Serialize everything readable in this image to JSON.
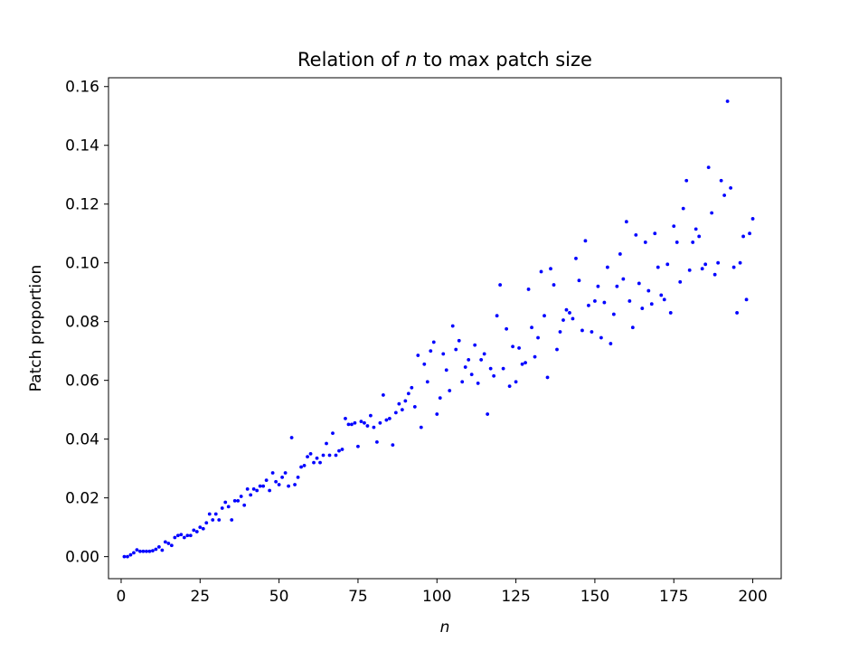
{
  "chart_data": {
    "type": "scatter",
    "title_prefix": "Relation of ",
    "title_var": "n",
    "title_suffix": " to max patch size",
    "xlabel": "n",
    "ylabel": "Patch proportion",
    "xlim": [
      -4,
      209
    ],
    "ylim": [
      -0.0075,
      0.163
    ],
    "xticks": [
      0,
      25,
      50,
      75,
      100,
      125,
      150,
      175,
      200
    ],
    "yticks": [
      0.0,
      0.02,
      0.04,
      0.06,
      0.08,
      0.1,
      0.12,
      0.14,
      0.16
    ],
    "ytick_labels": [
      "0.00",
      "0.02",
      "0.04",
      "0.06",
      "0.08",
      "0.10",
      "0.12",
      "0.14",
      "0.16"
    ],
    "grid": false,
    "legend": "none",
    "marker_color": "#0000ff",
    "series": [
      {
        "points": [
          [
            1,
            0.0
          ],
          [
            2,
            0.0
          ],
          [
            3,
            0.0006
          ],
          [
            4,
            0.0013
          ],
          [
            5,
            0.0023
          ],
          [
            6,
            0.0018
          ],
          [
            7,
            0.0018
          ],
          [
            8,
            0.0018
          ],
          [
            9,
            0.0018
          ],
          [
            10,
            0.002
          ],
          [
            11,
            0.0025
          ],
          [
            12,
            0.0033
          ],
          [
            13,
            0.0022
          ],
          [
            14,
            0.005
          ],
          [
            15,
            0.0045
          ],
          [
            16,
            0.0038
          ],
          [
            17,
            0.0065
          ],
          [
            18,
            0.0072
          ],
          [
            19,
            0.0075
          ],
          [
            20,
            0.0065
          ],
          [
            21,
            0.0072
          ],
          [
            22,
            0.0072
          ],
          [
            23,
            0.009
          ],
          [
            24,
            0.0085
          ],
          [
            25,
            0.01
          ],
          [
            26,
            0.0095
          ],
          [
            27,
            0.0115
          ],
          [
            28,
            0.0145
          ],
          [
            29,
            0.0125
          ],
          [
            30,
            0.0145
          ],
          [
            31,
            0.0125
          ],
          [
            32,
            0.0165
          ],
          [
            33,
            0.0185
          ],
          [
            34,
            0.017
          ],
          [
            35,
            0.0125
          ],
          [
            36,
            0.019
          ],
          [
            37,
            0.019
          ],
          [
            38,
            0.0205
          ],
          [
            39,
            0.0175
          ],
          [
            40,
            0.023
          ],
          [
            41,
            0.021
          ],
          [
            42,
            0.023
          ],
          [
            43,
            0.0225
          ],
          [
            44,
            0.024
          ],
          [
            45,
            0.024
          ],
          [
            46,
            0.026
          ],
          [
            47,
            0.0225
          ],
          [
            48,
            0.0285
          ],
          [
            49,
            0.0255
          ],
          [
            50,
            0.0245
          ],
          [
            51,
            0.027
          ],
          [
            52,
            0.0285
          ],
          [
            53,
            0.024
          ],
          [
            54,
            0.0405
          ],
          [
            55,
            0.0245
          ],
          [
            56,
            0.027
          ],
          [
            57,
            0.0305
          ],
          [
            58,
            0.031
          ],
          [
            59,
            0.034
          ],
          [
            60,
            0.035
          ],
          [
            61,
            0.032
          ],
          [
            62,
            0.0335
          ],
          [
            63,
            0.032
          ],
          [
            64,
            0.0345
          ],
          [
            65,
            0.0385
          ],
          [
            66,
            0.0345
          ],
          [
            67,
            0.042
          ],
          [
            68,
            0.0345
          ],
          [
            69,
            0.036
          ],
          [
            70,
            0.0365
          ],
          [
            71,
            0.047
          ],
          [
            72,
            0.045
          ],
          [
            73,
            0.045
          ],
          [
            74,
            0.0455
          ],
          [
            75,
            0.0375
          ],
          [
            76,
            0.046
          ],
          [
            77,
            0.0455
          ],
          [
            78,
            0.0445
          ],
          [
            79,
            0.048
          ],
          [
            80,
            0.044
          ],
          [
            81,
            0.039
          ],
          [
            82,
            0.0455
          ],
          [
            83,
            0.055
          ],
          [
            84,
            0.0465
          ],
          [
            85,
            0.047
          ],
          [
            86,
            0.038
          ],
          [
            87,
            0.049
          ],
          [
            88,
            0.052
          ],
          [
            89,
            0.05
          ],
          [
            90,
            0.053
          ],
          [
            91,
            0.0555
          ],
          [
            92,
            0.0575
          ],
          [
            93,
            0.051
          ],
          [
            94,
            0.0685
          ],
          [
            95,
            0.044
          ],
          [
            96,
            0.0655
          ],
          [
            97,
            0.0595
          ],
          [
            98,
            0.07
          ],
          [
            99,
            0.073
          ],
          [
            100,
            0.0485
          ],
          [
            101,
            0.054
          ],
          [
            102,
            0.069
          ],
          [
            103,
            0.0635
          ],
          [
            104,
            0.0565
          ],
          [
            105,
            0.0785
          ],
          [
            106,
            0.0705
          ],
          [
            107,
            0.0735
          ],
          [
            108,
            0.0595
          ],
          [
            109,
            0.0645
          ],
          [
            110,
            0.067
          ],
          [
            111,
            0.062
          ],
          [
            112,
            0.072
          ],
          [
            113,
            0.059
          ],
          [
            114,
            0.067
          ],
          [
            115,
            0.069
          ],
          [
            116,
            0.0485
          ],
          [
            117,
            0.064
          ],
          [
            118,
            0.0615
          ],
          [
            119,
            0.082
          ],
          [
            120,
            0.0925
          ],
          [
            121,
            0.064
          ],
          [
            122,
            0.0775
          ],
          [
            123,
            0.058
          ],
          [
            124,
            0.0715
          ],
          [
            125,
            0.0595
          ],
          [
            126,
            0.071
          ],
          [
            127,
            0.0655
          ],
          [
            128,
            0.066
          ],
          [
            129,
            0.091
          ],
          [
            130,
            0.078
          ],
          [
            131,
            0.068
          ],
          [
            132,
            0.0745
          ],
          [
            133,
            0.097
          ],
          [
            134,
            0.082
          ],
          [
            135,
            0.061
          ],
          [
            136,
            0.098
          ],
          [
            137,
            0.0925
          ],
          [
            138,
            0.0705
          ],
          [
            139,
            0.0765
          ],
          [
            140,
            0.0805
          ],
          [
            141,
            0.084
          ],
          [
            142,
            0.083
          ],
          [
            143,
            0.081
          ],
          [
            144,
            0.1015
          ],
          [
            145,
            0.094
          ],
          [
            146,
            0.077
          ],
          [
            147,
            0.1075
          ],
          [
            148,
            0.0855
          ],
          [
            149,
            0.0765
          ],
          [
            150,
            0.087
          ],
          [
            151,
            0.092
          ],
          [
            152,
            0.0745
          ],
          [
            153,
            0.0865
          ],
          [
            154,
            0.0985
          ],
          [
            155,
            0.0725
          ],
          [
            156,
            0.0825
          ],
          [
            157,
            0.092
          ],
          [
            158,
            0.103
          ],
          [
            159,
            0.0945
          ],
          [
            160,
            0.114
          ],
          [
            161,
            0.087
          ],
          [
            162,
            0.078
          ],
          [
            163,
            0.1095
          ],
          [
            164,
            0.093
          ],
          [
            165,
            0.0845
          ],
          [
            166,
            0.107
          ],
          [
            167,
            0.0905
          ],
          [
            168,
            0.086
          ],
          [
            169,
            0.11
          ],
          [
            170,
            0.0985
          ],
          [
            171,
            0.089
          ],
          [
            172,
            0.0875
          ],
          [
            173,
            0.0995
          ],
          [
            174,
            0.083
          ],
          [
            175,
            0.1125
          ],
          [
            176,
            0.107
          ],
          [
            177,
            0.0935
          ],
          [
            178,
            0.1185
          ],
          [
            179,
            0.128
          ],
          [
            180,
            0.0975
          ],
          [
            181,
            0.107
          ],
          [
            182,
            0.1115
          ],
          [
            183,
            0.109
          ],
          [
            184,
            0.098
          ],
          [
            185,
            0.0995
          ],
          [
            186,
            0.1325
          ],
          [
            187,
            0.117
          ],
          [
            188,
            0.096
          ],
          [
            189,
            0.1
          ],
          [
            190,
            0.128
          ],
          [
            191,
            0.123
          ],
          [
            192,
            0.155
          ],
          [
            193,
            0.1255
          ],
          [
            194,
            0.0985
          ],
          [
            195,
            0.083
          ],
          [
            196,
            0.1
          ],
          [
            197,
            0.109
          ],
          [
            198,
            0.0875
          ],
          [
            199,
            0.11
          ],
          [
            200,
            0.115
          ]
        ]
      }
    ]
  }
}
